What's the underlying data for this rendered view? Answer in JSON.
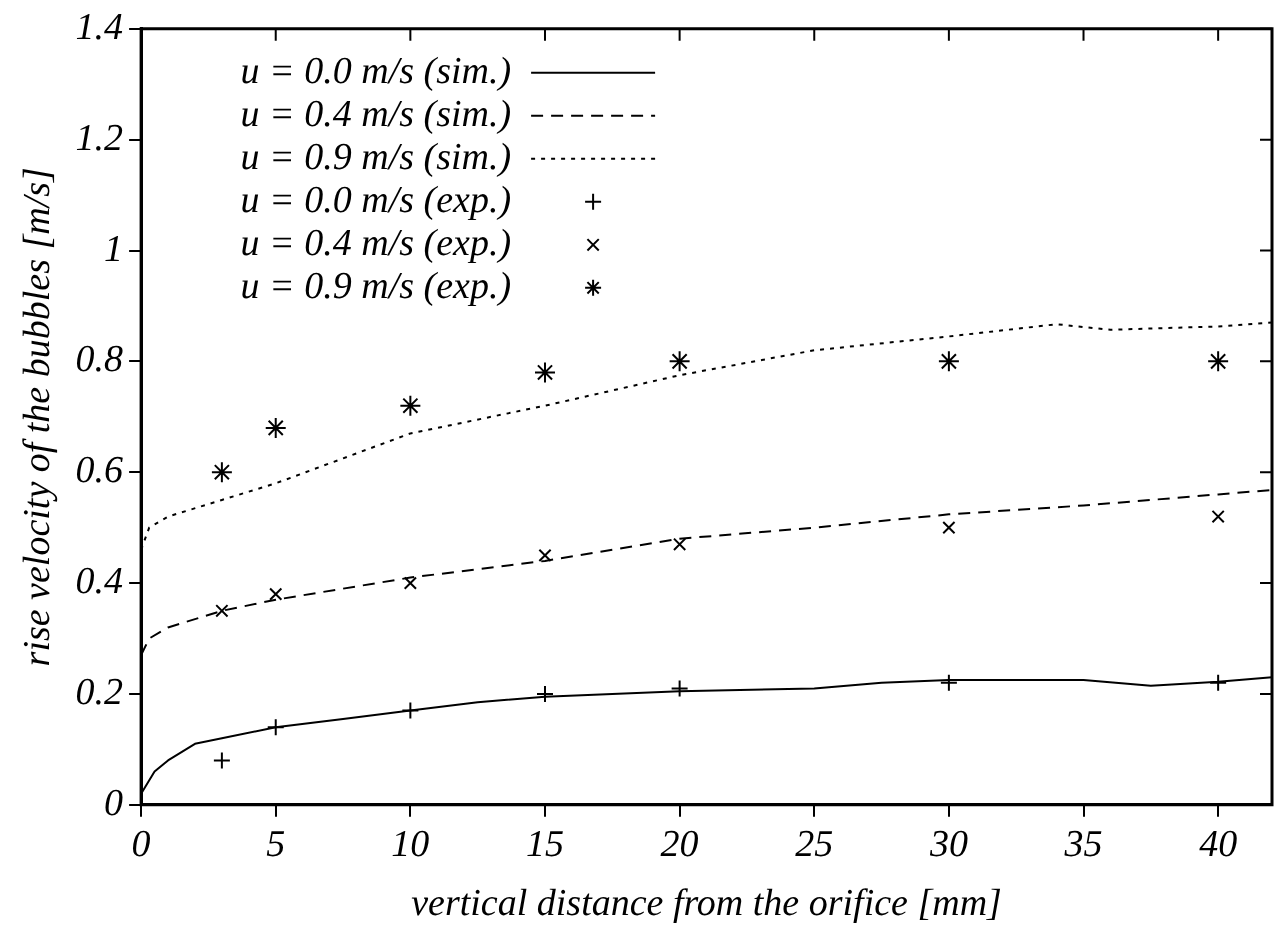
{
  "chart_data": {
    "type": "line",
    "xlabel": "vertical distance from the orifice [mm]",
    "ylabel": "rise velocity of the bubbles [m/s]",
    "xlim": [
      0,
      42
    ],
    "xticks": [
      0,
      5,
      10,
      15,
      20,
      25,
      30,
      35,
      40
    ],
    "ylim": [
      0,
      1.4
    ],
    "yticks": [
      0,
      0.2,
      0.4,
      0.6,
      0.8,
      1,
      1.2,
      1.4
    ],
    "grid": false,
    "legend": "top left",
    "series": [
      {
        "name": "u = 0.0 m/s (sim.)",
        "type": "line",
        "marker": "none",
        "line_style": "solid",
        "color": "#000000",
        "x": [
          0,
          0.5,
          1,
          2,
          3,
          5,
          7.5,
          10,
          12.5,
          15,
          17.5,
          20,
          25,
          27.5,
          30,
          35,
          37.5,
          40,
          42
        ],
        "values": [
          0.02,
          0.06,
          0.08,
          0.11,
          0.12,
          0.14,
          0.155,
          0.17,
          0.185,
          0.195,
          0.2,
          0.205,
          0.21,
          0.22,
          0.225,
          0.225,
          0.215,
          0.222,
          0.23
        ]
      },
      {
        "name": "u = 0.4 m/s (sim.)",
        "type": "line",
        "marker": "none",
        "line_style": "dashed",
        "color": "#000000",
        "x": [
          0,
          0.3,
          1,
          3,
          5,
          10,
          15,
          20,
          25,
          30,
          35,
          40,
          42
        ],
        "values": [
          0.27,
          0.3,
          0.32,
          0.35,
          0.37,
          0.41,
          0.44,
          0.48,
          0.5,
          0.524,
          0.54,
          0.56,
          0.568
        ]
      },
      {
        "name": "u = 0.9 m/s (sim.)",
        "type": "line",
        "marker": "none",
        "line_style": "dotted",
        "color": "#000000",
        "x": [
          0,
          0.3,
          1,
          3,
          5,
          10,
          15,
          20,
          25,
          30,
          34,
          36,
          40,
          42
        ],
        "values": [
          0.46,
          0.5,
          0.52,
          0.55,
          0.58,
          0.67,
          0.72,
          0.775,
          0.82,
          0.845,
          0.867,
          0.857,
          0.863,
          0.87
        ]
      },
      {
        "name": "u = 0.0 m/s (exp.)",
        "type": "scatter",
        "marker": "cross",
        "color": "#000000",
        "x": [
          3,
          5,
          10,
          15,
          20,
          30,
          40
        ],
        "values": [
          0.08,
          0.14,
          0.17,
          0.2,
          0.21,
          0.22,
          0.22
        ]
      },
      {
        "name": "u = 0.4 m/s (exp.)",
        "type": "scatter",
        "marker": "x",
        "color": "#000000",
        "x": [
          3,
          5,
          10,
          15,
          20,
          30,
          40
        ],
        "values": [
          0.35,
          0.38,
          0.4,
          0.45,
          0.47,
          0.5,
          0.52
        ]
      },
      {
        "name": "u = 0.9 m/s (exp.)",
        "type": "scatter",
        "color": "#000000",
        "x": [
          3,
          5,
          10,
          15,
          20,
          30,
          40
        ],
        "values": [
          0.6,
          0.68,
          0.72,
          0.78,
          0.8,
          0.8,
          0.8
        ]
      }
    ]
  }
}
